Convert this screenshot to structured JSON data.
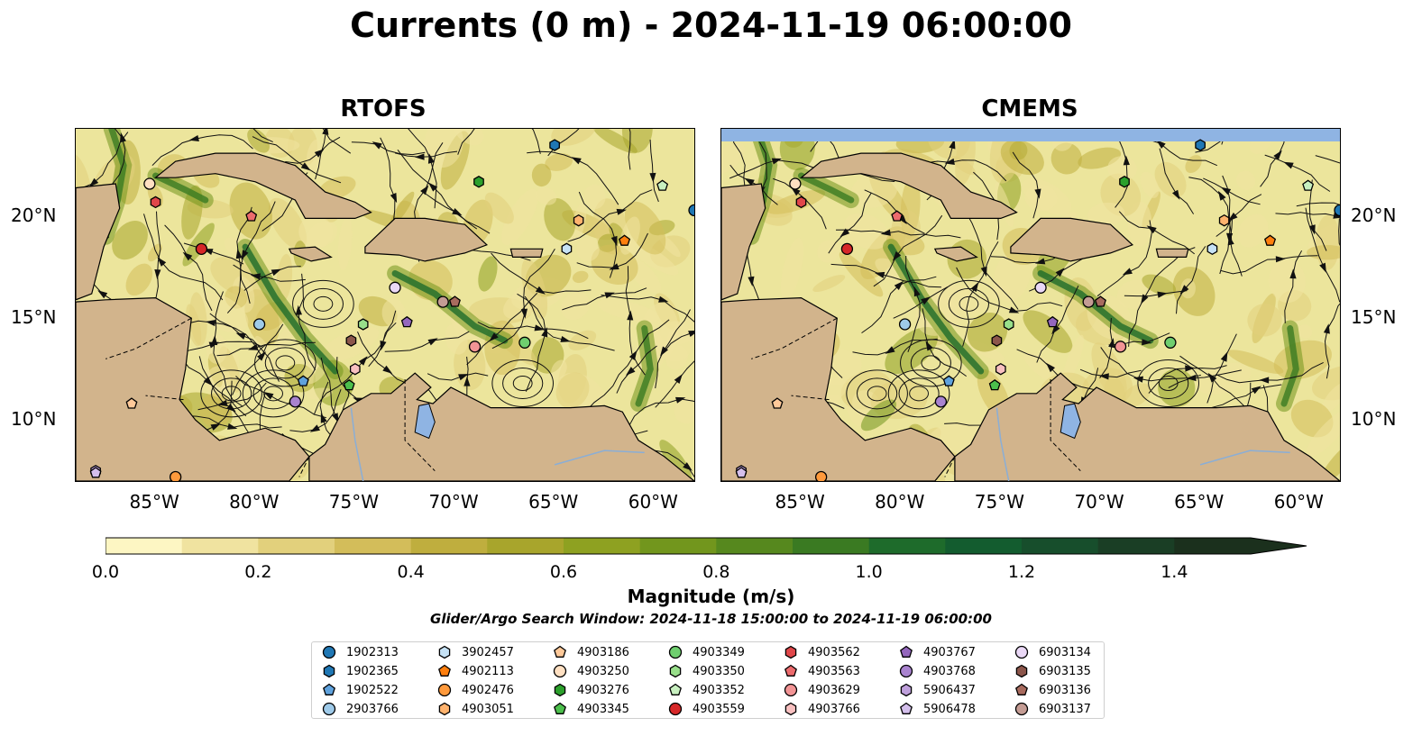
{
  "figure": {
    "title": "Currents (0 m) - 2024-11-19 06:00:00",
    "search_window": "Glider/Argo Search Window: 2024-11-18 15:00:00 to 2024-11-19 06:00:00"
  },
  "panels": [
    {
      "id": "rtofs",
      "title": "RTOFS",
      "north_boundary_filled": false
    },
    {
      "id": "cmems",
      "title": "CMEMS",
      "north_boundary_filled": true
    }
  ],
  "map_extent": {
    "lon": [
      -89,
      -58
    ],
    "lat": [
      7,
      24.3
    ]
  },
  "axes": {
    "lat_ticks": [
      "10°N",
      "15°N",
      "20°N"
    ],
    "lon_ticks": [
      "85°W",
      "80°W",
      "75°W",
      "70°W",
      "65°W",
      "60°W"
    ]
  },
  "colorbar": {
    "label": "Magnitude (m/s)",
    "ticks": [
      "0.0",
      "0.2",
      "0.4",
      "0.6",
      "0.8",
      "1.0",
      "1.2",
      "1.4"
    ],
    "range": [
      0,
      1.5
    ],
    "extend": "max",
    "colors": [
      "#fdf6c3",
      "#f0e3a0",
      "#e2d07c",
      "#d3bd5a",
      "#bfae3e",
      "#a8a52c",
      "#8ea121",
      "#72961d",
      "#56881e",
      "#3a7a22",
      "#1e6b2b",
      "#135c2f",
      "#174e2c",
      "#1a3e25",
      "#1b301d"
    ]
  },
  "colors": {
    "land": "#d2b48c",
    "water_background": "#ece59c",
    "lake": "#8fb4e3",
    "river": "#8aaed6"
  },
  "legend": [
    {
      "id": "1902313",
      "marker": "circle",
      "color": "#1f77b4"
    },
    {
      "id": "1902365",
      "marker": "hexagon",
      "color": "#1f77b4"
    },
    {
      "id": "1902522",
      "marker": "pentagon",
      "color": "#5fa2dd"
    },
    {
      "id": "2903766",
      "marker": "circle",
      "color": "#9ecae9"
    },
    {
      "id": "3902457",
      "marker": "hexagon",
      "color": "#c6e2f5"
    },
    {
      "id": "4902113",
      "marker": "pentagon",
      "color": "#ff7f0e"
    },
    {
      "id": "4902476",
      "marker": "circle",
      "color": "#ff9a3c"
    },
    {
      "id": "4903051",
      "marker": "hexagon",
      "color": "#ffb36e"
    },
    {
      "id": "4903186",
      "marker": "pentagon",
      "color": "#ffc999"
    },
    {
      "id": "4903250",
      "marker": "circle",
      "color": "#ffe0c2"
    },
    {
      "id": "4903276",
      "marker": "hexagon",
      "color": "#2ca02c"
    },
    {
      "id": "4903345",
      "marker": "pentagon",
      "color": "#4cbf4c"
    },
    {
      "id": "4903349",
      "marker": "circle",
      "color": "#6fcf6f"
    },
    {
      "id": "4903350",
      "marker": "hexagon",
      "color": "#98df8a"
    },
    {
      "id": "4903352",
      "marker": "pentagon",
      "color": "#c8f0c0"
    },
    {
      "id": "4903559",
      "marker": "circle",
      "color": "#d62728"
    },
    {
      "id": "4903562",
      "marker": "hexagon",
      "color": "#e0474a"
    },
    {
      "id": "4903563",
      "marker": "pentagon",
      "color": "#ec6b6d"
    },
    {
      "id": "4903629",
      "marker": "circle",
      "color": "#f29495"
    },
    {
      "id": "4903766",
      "marker": "hexagon",
      "color": "#f8c0c0"
    },
    {
      "id": "4903767",
      "marker": "pentagon",
      "color": "#9467bd"
    },
    {
      "id": "4903768",
      "marker": "circle",
      "color": "#a983cf"
    },
    {
      "id": "5906437",
      "marker": "hexagon",
      "color": "#bfa0dc"
    },
    {
      "id": "5906478",
      "marker": "pentagon",
      "color": "#d4bfec"
    },
    {
      "id": "6903134",
      "marker": "circle",
      "color": "#ead8f6"
    },
    {
      "id": "6903135",
      "marker": "hexagon",
      "color": "#8c564b"
    },
    {
      "id": "6903136",
      "marker": "pentagon",
      "color": "#a86b5e"
    },
    {
      "id": "6903137",
      "marker": "circle",
      "color": "#c49c94"
    }
  ],
  "float_positions": [
    {
      "lon": -58.0,
      "lat": 20.3,
      "id": "1902313"
    },
    {
      "lon": -65.0,
      "lat": 23.5,
      "id": "1902365"
    },
    {
      "lon": -77.6,
      "lat": 11.9,
      "id": "1902522"
    },
    {
      "lon": -79.8,
      "lat": 14.7,
      "id": "2903766"
    },
    {
      "lon": -64.4,
      "lat": 18.4,
      "id": "3902457"
    },
    {
      "lon": -61.5,
      "lat": 18.8,
      "id": "4902113"
    },
    {
      "lon": -84.0,
      "lat": 7.2,
      "id": "4902476"
    },
    {
      "lon": -63.8,
      "lat": 19.8,
      "id": "4903051"
    },
    {
      "lon": -86.2,
      "lat": 10.8,
      "id": "4903186"
    },
    {
      "lon": -85.3,
      "lat": 21.6,
      "id": "4903250"
    },
    {
      "lon": -68.8,
      "lat": 21.7,
      "id": "4903276"
    },
    {
      "lon": -75.3,
      "lat": 11.7,
      "id": "4903345"
    },
    {
      "lon": -66.5,
      "lat": 13.8,
      "id": "4903349"
    },
    {
      "lon": -74.6,
      "lat": 14.7,
      "id": "4903350"
    },
    {
      "lon": -59.6,
      "lat": 21.5,
      "id": "4903352"
    },
    {
      "lon": -82.7,
      "lat": 18.4,
      "id": "4903559"
    },
    {
      "lon": -85.0,
      "lat": 20.7,
      "id": "4903562"
    },
    {
      "lon": -80.2,
      "lat": 20.0,
      "id": "4903563"
    },
    {
      "lon": -69.0,
      "lat": 13.6,
      "id": "4903629"
    },
    {
      "lon": -75.0,
      "lat": 12.5,
      "id": "4903766"
    },
    {
      "lon": -72.4,
      "lat": 14.8,
      "id": "4903767"
    },
    {
      "lon": -78.0,
      "lat": 10.9,
      "id": "4903768"
    },
    {
      "lon": -88.0,
      "lat": 7.5,
      "id": "5906437"
    },
    {
      "lon": -88.0,
      "lat": 7.4,
      "id": "5906478"
    },
    {
      "lon": -73.0,
      "lat": 16.5,
      "id": "6903134"
    },
    {
      "lon": -75.2,
      "lat": 13.9,
      "id": "6903135"
    },
    {
      "lon": -70.0,
      "lat": 15.8,
      "id": "6903136"
    },
    {
      "lon": -70.6,
      "lat": 15.8,
      "id": "6903137"
    }
  ]
}
